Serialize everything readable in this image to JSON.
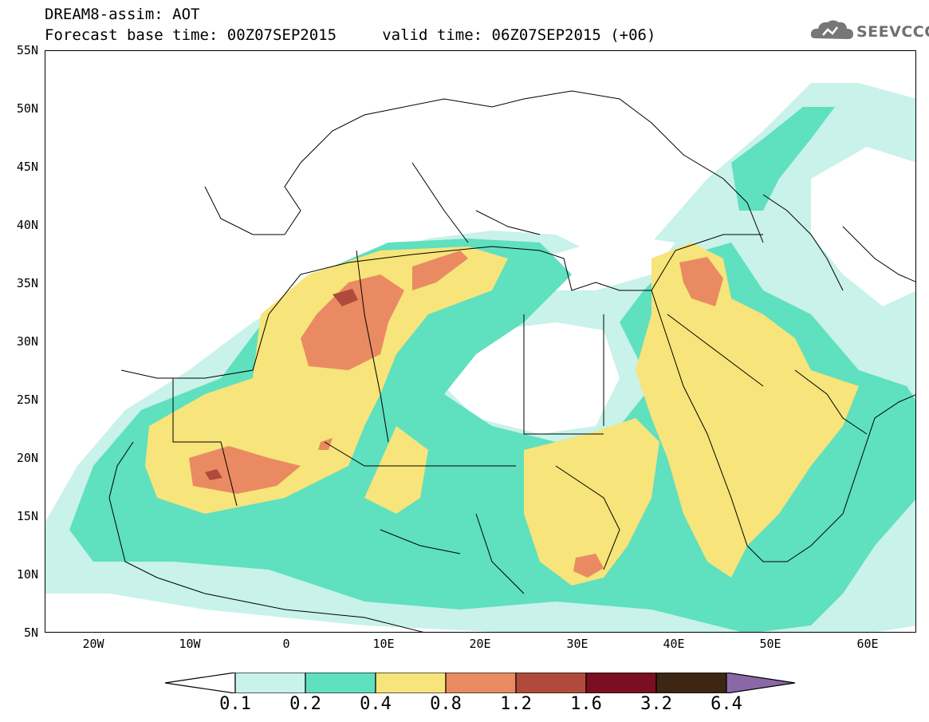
{
  "title": {
    "line1": "DREAM8-assim: AOT",
    "line2": "Forecast base time: 00Z07SEP2015     valid time: 06Z07SEP2015 (+06)"
  },
  "logo": {
    "text": "SEEVCCC",
    "icon": "cloud-logo-icon"
  },
  "map": {
    "lat_labels": [
      "55N",
      "50N",
      "45N",
      "40N",
      "35N",
      "30N",
      "25N",
      "20N",
      "15N",
      "10N",
      "5N"
    ],
    "lon_labels": [
      "20W",
      "10W",
      "0",
      "10E",
      "20E",
      "30E",
      "40E",
      "50E",
      "60E"
    ],
    "extent": {
      "lon_min": -25,
      "lon_max": 65,
      "lat_min": 5,
      "lat_max": 55
    }
  },
  "colorbar": {
    "levels": [
      "0.1",
      "0.2",
      "0.4",
      "0.8",
      "1.2",
      "1.6",
      "3.2",
      "6.4"
    ],
    "colors": [
      "#c8f2ea",
      "#5fe0bf",
      "#f7e47a",
      "#ea8a62",
      "#b04b3c",
      "#7a0f22",
      "#3d2614",
      "#8a68a6"
    ]
  }
}
